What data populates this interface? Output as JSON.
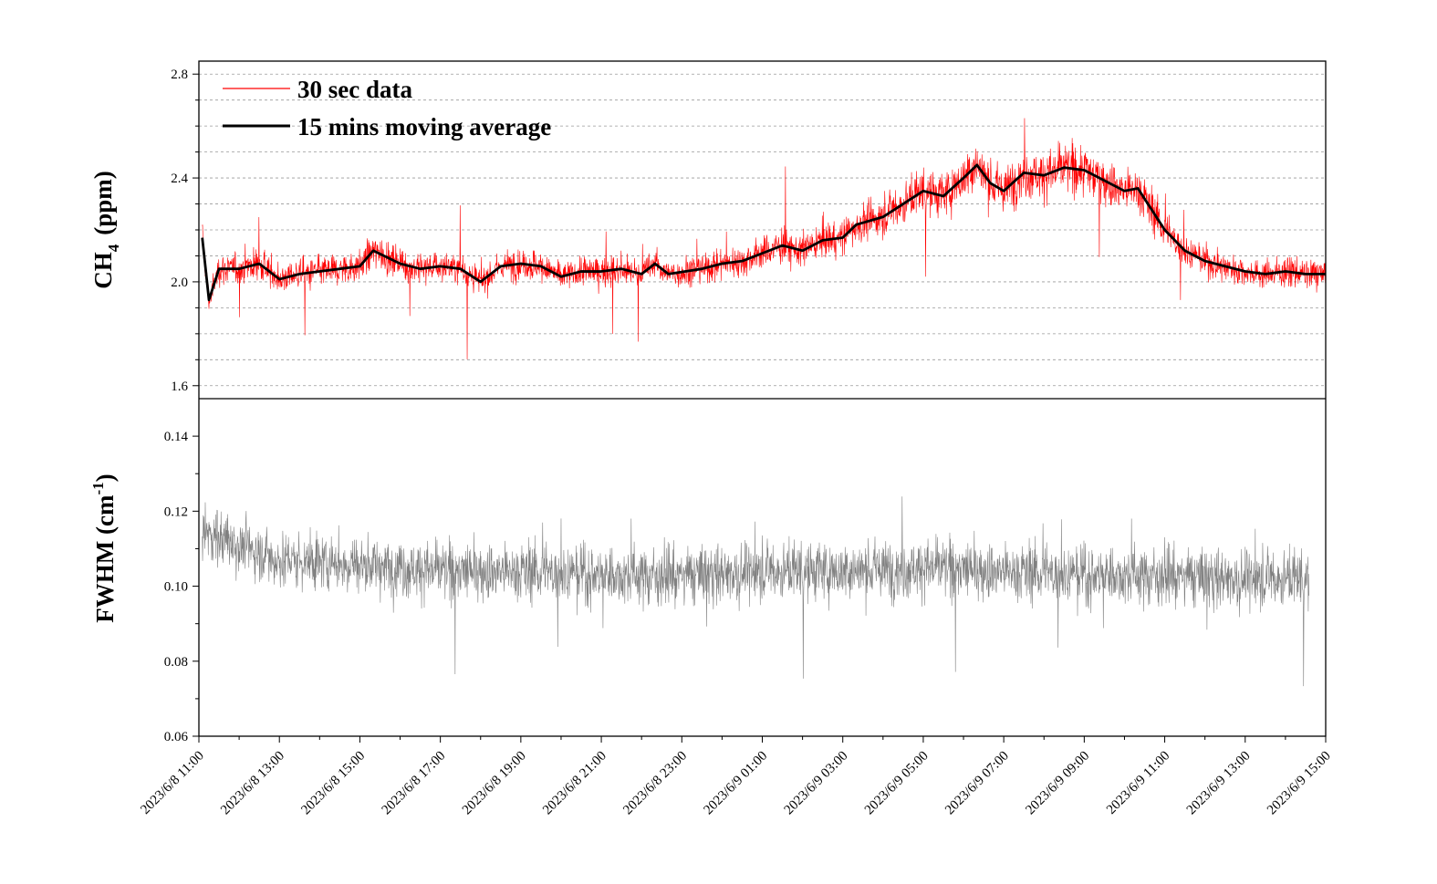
{
  "chart_data": [
    {
      "type": "line",
      "panel": "top",
      "ylabel": {
        "main": "CH",
        "sub": "4",
        "unit": "(ppm)"
      },
      "xlabel": "",
      "xlim": [
        "2023/6/8 11:00",
        "2023/6/9 15:00"
      ],
      "ylim": [
        1.55,
        2.85
      ],
      "yticks": [
        1.6,
        2.0,
        2.4,
        2.8
      ],
      "ytick_labels": [
        "1.6",
        "2.0",
        "2.4",
        "2.8"
      ],
      "grid": "horizontal dashed, every 0.1",
      "legend_position": "top-left",
      "series": [
        {
          "name": "30 sec data",
          "color": "#ff0000",
          "interval": "30 s",
          "approx_trend": [
            {
              "x": "2023/6/8 11:00",
              "y": 2.05
            },
            {
              "x": "2023/6/8 13:00",
              "y": 2.05
            },
            {
              "x": "2023/6/8 15:00",
              "y": 2.07
            },
            {
              "x": "2023/6/8 17:00",
              "y": 2.06
            },
            {
              "x": "2023/6/8 19:00",
              "y": 2.04
            },
            {
              "x": "2023/6/8 21:00",
              "y": 2.05
            },
            {
              "x": "2023/6/8 23:00",
              "y": 2.05
            },
            {
              "x": "2023/6/9 01:00",
              "y": 2.1
            },
            {
              "x": "2023/6/9 03:00",
              "y": 2.2
            },
            {
              "x": "2023/6/9 05:00",
              "y": 2.33
            },
            {
              "x": "2023/6/9 07:00",
              "y": 2.37
            },
            {
              "x": "2023/6/9 09:00",
              "y": 2.43
            },
            {
              "x": "2023/6/9 11:00",
              "y": 2.16
            },
            {
              "x": "2023/6/9 13:00",
              "y": 2.04
            },
            {
              "x": "2023/6/9 15:00",
              "y": 2.02
            }
          ]
        },
        {
          "name": "15 mins moving average",
          "color": "#000000",
          "points": [
            {
              "x": "2023/6/8 11:05",
              "y": 2.17
            },
            {
              "x": "2023/6/8 11:15",
              "y": 1.93
            },
            {
              "x": "2023/6/8 11:30",
              "y": 2.05
            },
            {
              "x": "2023/6/8 12:00",
              "y": 2.05
            },
            {
              "x": "2023/6/8 12:30",
              "y": 2.07
            },
            {
              "x": "2023/6/8 13:00",
              "y": 2.01
            },
            {
              "x": "2023/6/8 13:30",
              "y": 2.03
            },
            {
              "x": "2023/6/8 14:00",
              "y": 2.04
            },
            {
              "x": "2023/6/8 14:30",
              "y": 2.05
            },
            {
              "x": "2023/6/8 15:00",
              "y": 2.06
            },
            {
              "x": "2023/6/8 15:20",
              "y": 2.12
            },
            {
              "x": "2023/6/8 16:00",
              "y": 2.07
            },
            {
              "x": "2023/6/8 16:30",
              "y": 2.05
            },
            {
              "x": "2023/6/8 17:00",
              "y": 2.06
            },
            {
              "x": "2023/6/8 17:30",
              "y": 2.05
            },
            {
              "x": "2023/6/8 18:00",
              "y": 2.0
            },
            {
              "x": "2023/6/8 18:30",
              "y": 2.06
            },
            {
              "x": "2023/6/8 19:00",
              "y": 2.07
            },
            {
              "x": "2023/6/8 19:30",
              "y": 2.06
            },
            {
              "x": "2023/6/8 20:00",
              "y": 2.02
            },
            {
              "x": "2023/6/8 20:30",
              "y": 2.04
            },
            {
              "x": "2023/6/8 21:00",
              "y": 2.04
            },
            {
              "x": "2023/6/8 21:30",
              "y": 2.05
            },
            {
              "x": "2023/6/8 22:00",
              "y": 2.03
            },
            {
              "x": "2023/6/8 22:20",
              "y": 2.07
            },
            {
              "x": "2023/6/8 22:40",
              "y": 2.03
            },
            {
              "x": "2023/6/8 23:30",
              "y": 2.05
            },
            {
              "x": "2023/6/9 00:00",
              "y": 2.07
            },
            {
              "x": "2023/6/9 00:30",
              "y": 2.08
            },
            {
              "x": "2023/6/9 01:00",
              "y": 2.11
            },
            {
              "x": "2023/6/9 01:30",
              "y": 2.14
            },
            {
              "x": "2023/6/9 02:00",
              "y": 2.12
            },
            {
              "x": "2023/6/9 02:30",
              "y": 2.16
            },
            {
              "x": "2023/6/9 03:00",
              "y": 2.17
            },
            {
              "x": "2023/6/9 03:20",
              "y": 2.22
            },
            {
              "x": "2023/6/9 04:00",
              "y": 2.25
            },
            {
              "x": "2023/6/9 04:30",
              "y": 2.3
            },
            {
              "x": "2023/6/9 05:00",
              "y": 2.35
            },
            {
              "x": "2023/6/9 05:30",
              "y": 2.33
            },
            {
              "x": "2023/6/9 06:00",
              "y": 2.4
            },
            {
              "x": "2023/6/9 06:20",
              "y": 2.45
            },
            {
              "x": "2023/6/9 06:40",
              "y": 2.38
            },
            {
              "x": "2023/6/9 07:00",
              "y": 2.35
            },
            {
              "x": "2023/6/9 07:30",
              "y": 2.42
            },
            {
              "x": "2023/6/9 08:00",
              "y": 2.41
            },
            {
              "x": "2023/6/9 08:30",
              "y": 2.44
            },
            {
              "x": "2023/6/9 09:00",
              "y": 2.43
            },
            {
              "x": "2023/6/9 09:30",
              "y": 2.39
            },
            {
              "x": "2023/6/9 10:00",
              "y": 2.35
            },
            {
              "x": "2023/6/9 10:20",
              "y": 2.36
            },
            {
              "x": "2023/6/9 10:40",
              "y": 2.28
            },
            {
              "x": "2023/6/9 11:00",
              "y": 2.2
            },
            {
              "x": "2023/6/9 11:30",
              "y": 2.12
            },
            {
              "x": "2023/6/9 12:00",
              "y": 2.08
            },
            {
              "x": "2023/6/9 12:30",
              "y": 2.06
            },
            {
              "x": "2023/6/9 13:00",
              "y": 2.04
            },
            {
              "x": "2023/6/9 13:30",
              "y": 2.03
            },
            {
              "x": "2023/6/9 14:00",
              "y": 2.04
            },
            {
              "x": "2023/6/9 14:30",
              "y": 2.03
            },
            {
              "x": "2023/6/9 15:00",
              "y": 2.03
            }
          ]
        }
      ]
    },
    {
      "type": "line",
      "panel": "bottom",
      "ylabel": {
        "main": "FWHM (cm",
        "sup": "-1",
        "close": ")"
      },
      "xlabel": "",
      "xlim": [
        "2023/6/8 11:00",
        "2023/6/9 15:00"
      ],
      "ylim": [
        0.06,
        0.15
      ],
      "yticks": [
        0.06,
        0.08,
        0.1,
        0.12,
        0.14
      ],
      "ytick_labels": [
        "0.06",
        "0.08",
        "0.10",
        "0.12",
        "0.14"
      ],
      "grid": "off",
      "x_tick_labels": [
        "2023/6/8 11:00",
        "2023/6/8 13:00",
        "2023/6/8 15:00",
        "2023/6/8 17:00",
        "2023/6/8 19:00",
        "2023/6/8 21:00",
        "2023/6/8 23:00",
        "2023/6/9 01:00",
        "2023/6/9 03:00",
        "2023/6/9 05:00",
        "2023/6/9 07:00",
        "2023/6/9 09:00",
        "2023/6/9 11:00",
        "2023/6/9 13:00",
        "2023/6/9 15:00"
      ],
      "series": [
        {
          "color": "#808080",
          "x_end": "2023/6/9 14:35",
          "approx_trend": [
            {
              "x": "2023/6/8 11:00",
              "y": 0.115
            },
            {
              "x": "2023/6/8 13:00",
              "y": 0.107
            },
            {
              "x": "2023/6/8 15:00",
              "y": 0.106
            },
            {
              "x": "2023/6/8 17:00",
              "y": 0.104
            },
            {
              "x": "2023/6/8 19:00",
              "y": 0.104
            },
            {
              "x": "2023/6/8 21:00",
              "y": 0.103
            },
            {
              "x": "2023/6/8 23:00",
              "y": 0.103
            },
            {
              "x": "2023/6/9 01:00",
              "y": 0.104
            },
            {
              "x": "2023/6/9 03:00",
              "y": 0.104
            },
            {
              "x": "2023/6/9 05:00",
              "y": 0.105
            },
            {
              "x": "2023/6/9 07:00",
              "y": 0.104
            },
            {
              "x": "2023/6/9 09:00",
              "y": 0.103
            },
            {
              "x": "2023/6/9 11:00",
              "y": 0.103
            },
            {
              "x": "2023/6/9 13:00",
              "y": 0.102
            },
            {
              "x": "2023/6/9 14:35",
              "y": 0.102
            }
          ]
        }
      ]
    }
  ]
}
